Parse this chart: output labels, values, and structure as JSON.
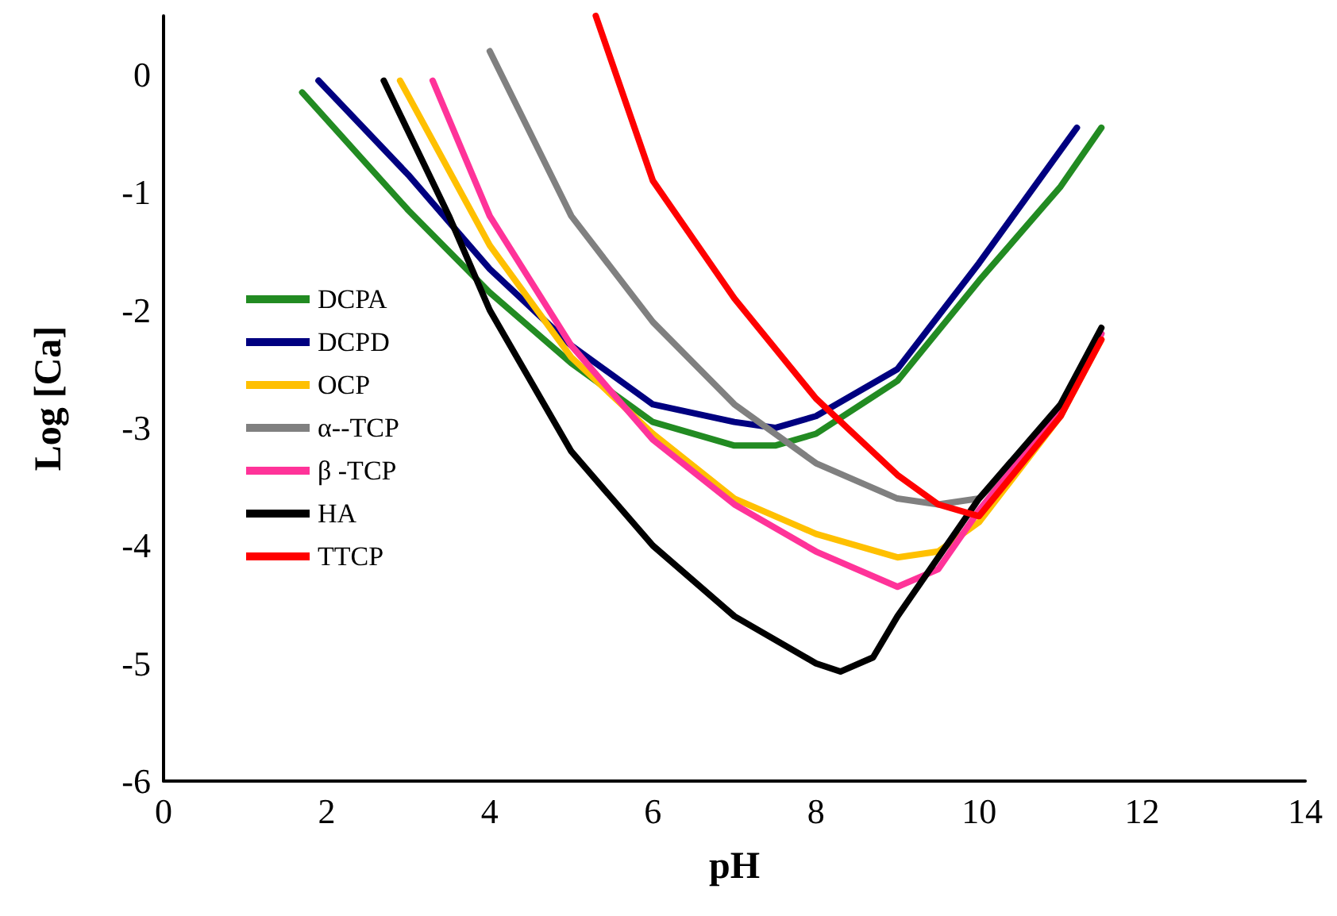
{
  "chart_data": {
    "type": "line",
    "xlabel": "pH",
    "ylabel": "Log [Ca]",
    "xlim": [
      0,
      14
    ],
    "ylim": [
      -6,
      0.5
    ],
    "xticks": [
      0,
      2,
      4,
      6,
      8,
      10,
      12,
      14
    ],
    "yticks": [
      -6,
      -5,
      -4,
      -3,
      -2,
      -1,
      0
    ],
    "grid": false,
    "legend": "left",
    "marker": "none",
    "line_style": "solid",
    "series": [
      {
        "name": "DCPA",
        "color": "#228b22",
        "x": [
          1.7,
          3,
          4,
          5,
          6,
          7,
          7.5,
          8,
          9,
          10,
          11,
          11.5
        ],
        "values": [
          -0.15,
          -1.15,
          -1.85,
          -2.45,
          -2.95,
          -3.15,
          -3.15,
          -3.05,
          -2.6,
          -1.75,
          -0.95,
          -0.45
        ]
      },
      {
        "name": "DCPD",
        "color": "#000080",
        "x": [
          1.9,
          3,
          4,
          5,
          6,
          7,
          7.5,
          8,
          9,
          10,
          11.2
        ],
        "values": [
          -0.05,
          -0.85,
          -1.65,
          -2.3,
          -2.8,
          -2.95,
          -3.0,
          -2.9,
          -2.5,
          -1.6,
          -0.45
        ]
      },
      {
        "name": "OCP",
        "color": "#ffc000",
        "x": [
          2.9,
          4,
          5,
          6,
          7,
          8,
          9,
          9.5,
          10,
          11,
          11.5
        ],
        "values": [
          -0.05,
          -1.45,
          -2.4,
          -3.05,
          -3.6,
          -3.9,
          -4.1,
          -4.05,
          -3.8,
          -2.9,
          -2.25
        ]
      },
      {
        "name": "α--TCP",
        "color": "#808080",
        "x": [
          4,
          5,
          6,
          7,
          8,
          9,
          9.5,
          10,
          11,
          11.5
        ],
        "values": [
          0.2,
          -1.2,
          -2.1,
          -2.8,
          -3.3,
          -3.6,
          -3.65,
          -3.6,
          -2.9,
          -2.2
        ]
      },
      {
        "name": "β -TCP",
        "color": "#ff3399",
        "x": [
          3.3,
          4,
          5,
          6,
          7,
          8,
          9,
          9.5,
          10,
          11,
          11.5
        ],
        "values": [
          -0.05,
          -1.2,
          -2.3,
          -3.1,
          -3.65,
          -4.05,
          -4.35,
          -4.2,
          -3.7,
          -2.85,
          -2.2
        ]
      },
      {
        "name": "HA",
        "color": "#000000",
        "x": [
          2.7,
          3.5,
          4,
          5,
          6,
          7,
          8,
          8.3,
          8.7,
          9,
          10,
          11,
          11.5
        ],
        "values": [
          -0.05,
          -1.2,
          -2.0,
          -3.2,
          -4.0,
          -4.6,
          -5.0,
          -5.07,
          -4.95,
          -4.6,
          -3.6,
          -2.8,
          -2.15
        ]
      },
      {
        "name": "TTCP",
        "color": "#ff0000",
        "x": [
          5.3,
          6,
          7,
          8,
          9,
          9.5,
          10,
          11,
          11.5
        ],
        "values": [
          0.5,
          -0.9,
          -1.9,
          -2.75,
          -3.4,
          -3.65,
          -3.75,
          -2.9,
          -2.25
        ]
      }
    ]
  }
}
